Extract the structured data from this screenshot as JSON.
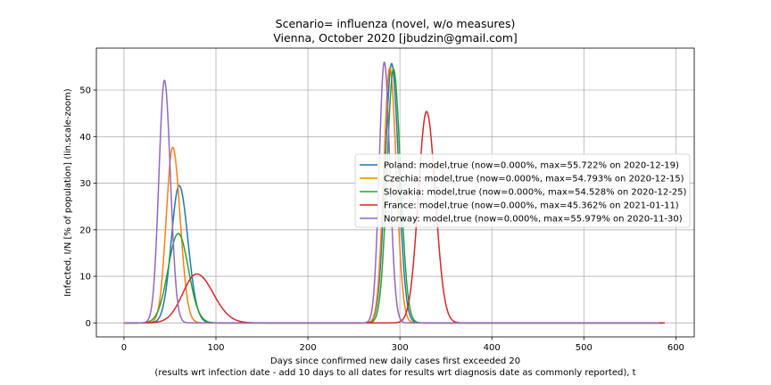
{
  "chart_data": {
    "type": "line",
    "title_line1": "Scenario= influenza (novel, w/o measures)",
    "title_line2": "Vienna, October 2020 [jbudzin@gmail.com]",
    "xlabel_line1": "Days since confirmed new daily cases first exceeded 20",
    "xlabel_line2": "(results wrt infection date - add 10 days to all dates for results wrt diagnosis date as commonly reported), t",
    "ylabel": "Infected, I/N [% of population] (lin.scale-zoom)",
    "xlim": [
      -30,
      620
    ],
    "ylim": [
      -3,
      59
    ],
    "x_ticks": [
      0,
      100,
      200,
      300,
      400,
      500,
      600
    ],
    "y_ticks": [
      0,
      10,
      20,
      30,
      40,
      50
    ],
    "grid": true,
    "legend_position": "center-right",
    "series": [
      {
        "name": "Poland: model,true (now=0.000%, max=55.722% on 2020-12-19)",
        "color": "#1f77b4",
        "x_end": 586,
        "peaks": [
          {
            "center": 60,
            "height": 29.5,
            "sigma_left": 8.5,
            "sigma_right": 9.5
          },
          {
            "center": 291,
            "height": 55.7,
            "sigma_left": 7,
            "sigma_right": 7.5
          }
        ]
      },
      {
        "name": "Czechia: model,true (now=0.000%, max=54.793% on 2020-12-15)",
        "color": "#ff7f0e",
        "x_end": 586,
        "peaks": [
          {
            "center": 53,
            "height": 37.7,
            "sigma_left": 7,
            "sigma_right": 8
          },
          {
            "center": 289,
            "height": 54.8,
            "sigma_left": 6.5,
            "sigma_right": 7
          }
        ]
      },
      {
        "name": "Slovakia: model,true (now=0.000%, max=54.528% on 2020-12-25)",
        "color": "#2ca02c",
        "x_end": 586,
        "peaks": [
          {
            "center": 59,
            "height": 19.2,
            "sigma_left": 11,
            "sigma_right": 11
          },
          {
            "center": 293,
            "height": 54.5,
            "sigma_left": 7,
            "sigma_right": 7.5
          }
        ]
      },
      {
        "name": "France: model,true (now=0.000%, max=45.362% on 2021-01-11)",
        "color": "#d62728",
        "x_end": 588,
        "peaks": [
          {
            "center": 79,
            "height": 10.5,
            "sigma_left": 15,
            "sigma_right": 18
          },
          {
            "center": 329,
            "height": 45.4,
            "sigma_left": 9,
            "sigma_right": 9.5
          }
        ]
      },
      {
        "name": "Norway: model,true (now=0.000%, max=55.979% on 2020-11-30)",
        "color": "#9467bd",
        "x_end": 582,
        "peaks": [
          {
            "center": 44,
            "height": 52.1,
            "sigma_left": 6,
            "sigma_right": 6.5
          },
          {
            "center": 283,
            "height": 56.0,
            "sigma_left": 5.5,
            "sigma_right": 6
          }
        ]
      }
    ]
  }
}
